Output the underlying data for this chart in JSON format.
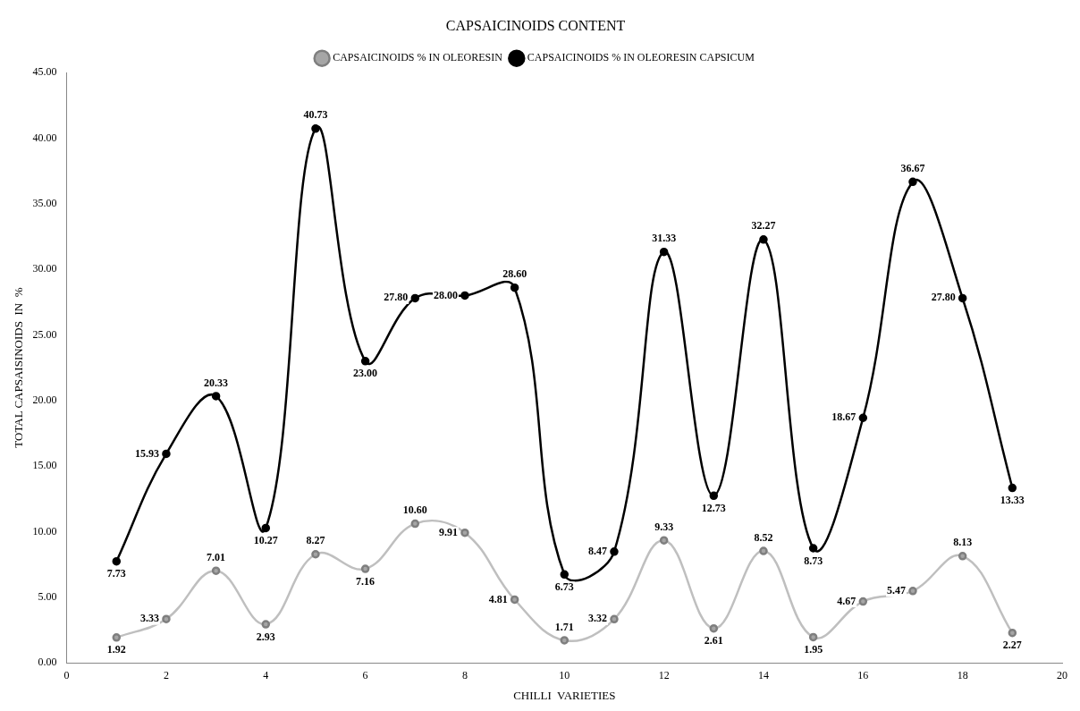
{
  "chart_data": {
    "type": "line",
    "title": "CAPSAICINOIDS CONTENT",
    "xlabel": "CHILLI  VARIETIES",
    "ylabel": "TOTAL CAPSAISINOIDS  IN  %",
    "x": [
      1,
      2,
      3,
      4,
      5,
      6,
      7,
      8,
      9,
      10,
      11,
      12,
      13,
      14,
      15,
      16,
      17,
      18,
      19
    ],
    "series": [
      {
        "name": "CAPSAICINOIDS % IN OLEORESIN",
        "color": "#bfbfbf",
        "values": [
          1.92,
          3.33,
          7.01,
          2.93,
          8.27,
          7.16,
          10.6,
          9.91,
          4.81,
          1.71,
          3.32,
          9.33,
          2.61,
          8.52,
          1.95,
          4.67,
          5.47,
          8.13,
          2.27
        ],
        "value_labels": [
          "1.92",
          "3.33",
          "7.01",
          "2.93",
          "8.27",
          "7.16",
          "10.60",
          "9.91",
          "4.81",
          "1.71",
          "3.32",
          "9.33",
          "2.61",
          "8.52",
          "1.95",
          "4.67",
          "5.47",
          "8.13",
          "2.27"
        ]
      },
      {
        "name": "CAPSAICINOIDS % IN OLEORESIN CAPSICUM",
        "color": "#000000",
        "values": [
          7.73,
          15.93,
          20.33,
          10.27,
          40.73,
          23.0,
          27.8,
          28.0,
          28.6,
          6.73,
          8.47,
          31.33,
          12.73,
          32.27,
          8.73,
          18.67,
          36.67,
          27.8,
          13.33
        ],
        "value_labels": [
          "7.73",
          "15.93",
          "20.33",
          "10.27",
          "40.73",
          "23.00",
          "27.80",
          "28.00",
          "28.60",
          "6.73",
          "8.47",
          "31.33",
          "12.73",
          "32.27",
          "8.73",
          "18.67",
          "36.67",
          "27.80",
          "13.33"
        ]
      }
    ],
    "xlim": [
      0,
      20
    ],
    "xticks": [
      0,
      2,
      4,
      6,
      8,
      10,
      12,
      14,
      16,
      18,
      20
    ],
    "ylim": [
      0,
      45
    ],
    "yticks": [
      {
        "value": 0,
        "label": "0.00"
      },
      {
        "value": 5,
        "label": "5.00"
      },
      {
        "value": 10,
        "label": "10.00"
      },
      {
        "value": 15,
        "label": "15.00"
      },
      {
        "value": 20,
        "label": "20.00"
      },
      {
        "value": 25,
        "label": "25.00"
      },
      {
        "value": 30,
        "label": "30.00"
      },
      {
        "value": 35,
        "label": "35.00"
      },
      {
        "value": 40,
        "label": "40.00"
      },
      {
        "value": 45,
        "label": "45.00"
      }
    ],
    "grid": false,
    "legend": "top",
    "marker": "circle",
    "line_style": "solid"
  }
}
